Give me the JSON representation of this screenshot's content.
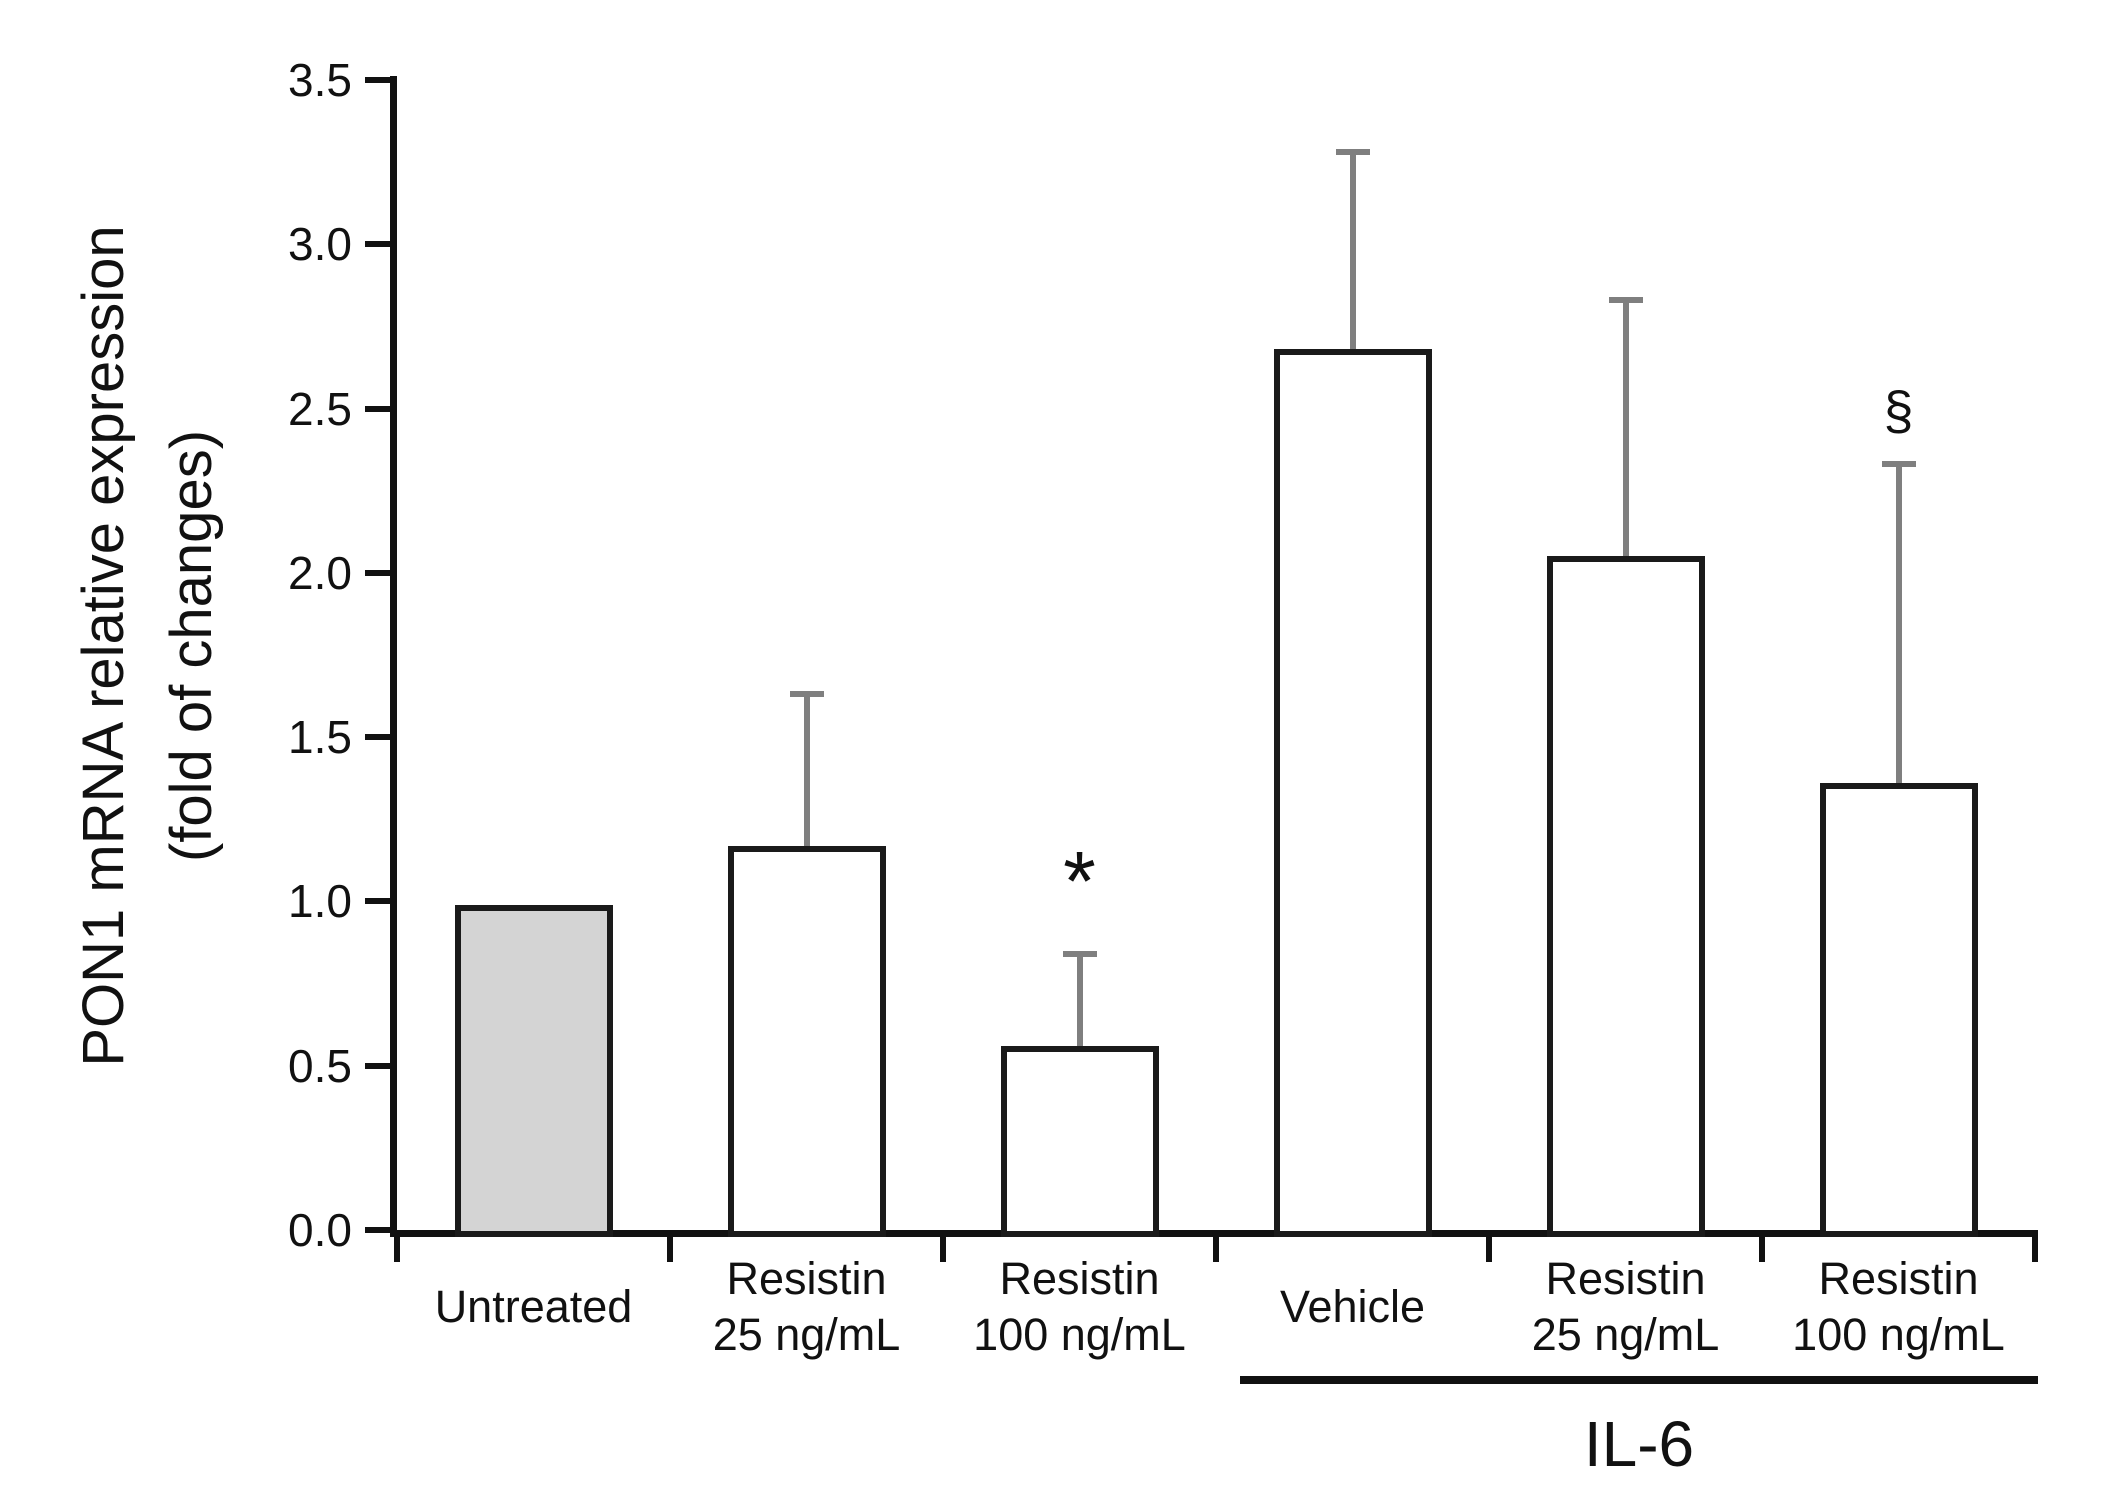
{
  "chart_data": {
    "type": "bar",
    "title": "",
    "ylabel_lines": [
      "PON1 mRNA relative expression",
      "(fold of changes)"
    ],
    "xlabel": "",
    "ylim": [
      0,
      3.5
    ],
    "ytick_labels": [
      "0.0",
      "0.5",
      "1.0",
      "1.5",
      "2.0",
      "2.5",
      "3.0",
      "3.5"
    ],
    "grid": false,
    "legend": null,
    "categories": [
      {
        "lines": [
          "Untreated"
        ],
        "value": 0.99,
        "error_top": null,
        "fill": "#d4d4d4",
        "annotation": ""
      },
      {
        "lines": [
          "Resistin",
          "25 ng/mL"
        ],
        "value": 1.17,
        "error_top": 1.63,
        "fill": "#ffffff",
        "annotation": ""
      },
      {
        "lines": [
          "Resistin",
          "100 ng/mL"
        ],
        "value": 0.56,
        "error_top": 0.84,
        "fill": "#ffffff",
        "annotation": "*"
      },
      {
        "lines": [
          "Vehicle"
        ],
        "value": 2.68,
        "error_top": 3.28,
        "fill": "#ffffff",
        "annotation": ""
      },
      {
        "lines": [
          "Resistin",
          "25 ng/mL"
        ],
        "value": 2.05,
        "error_top": 2.83,
        "fill": "#ffffff",
        "annotation": ""
      },
      {
        "lines": [
          "Resistin",
          "100 ng/mL"
        ],
        "value": 1.36,
        "error_top": 2.33,
        "fill": "#ffffff",
        "annotation": "§"
      }
    ],
    "group": {
      "label": "IL-6",
      "start_index": 3,
      "end_index": 5
    },
    "colors": {
      "axis": "#111111",
      "bar_outline": "#1a1a1a",
      "error_bar": "#7f7f7f",
      "untreated_fill": "#d4d4d4",
      "text": "#111111",
      "background": "#ffffff"
    }
  }
}
